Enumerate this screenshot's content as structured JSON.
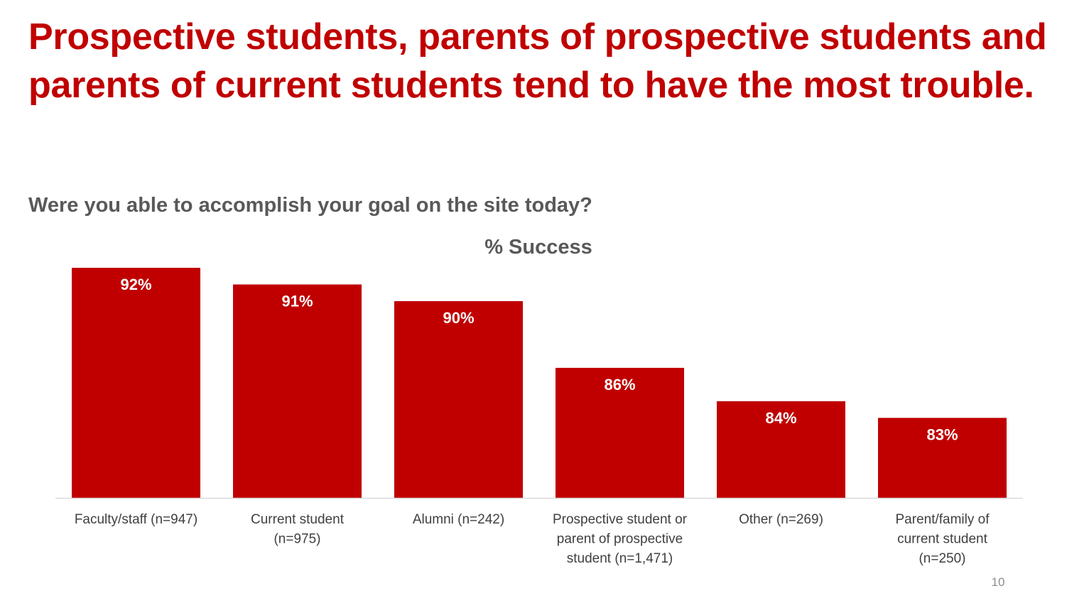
{
  "slide": {
    "headline": "Prospective students, parents of prospective students and parents of current students tend to have the most trouble.",
    "question": "Were you able to accomplish your goal on the site today?",
    "page_number": "10"
  },
  "colors": {
    "bar": "#c00000",
    "headline": "#c00000",
    "subtitle": "#595959",
    "axis_label": "#404040",
    "data_label": "#ffffff",
    "baseline": "#d9d9d9"
  },
  "chart_data": {
    "type": "bar",
    "title": "% Success",
    "categories": [
      "Faculty/staff (n=947)",
      "Current student (n=975)",
      "Alumni (n=242)",
      "Prospective student or parent of prospective student (n=1,471)",
      "Other (n=269)",
      "Parent/family of current student (n=250)"
    ],
    "category_lines": [
      [
        "Faculty/staff (n=947)"
      ],
      [
        "Current student",
        "(n=975)"
      ],
      [
        "Alumni (n=242)"
      ],
      [
        "Prospective student or",
        "parent of prospective",
        "student (n=1,471)"
      ],
      [
        "Other (n=269)"
      ],
      [
        "Parent/family of",
        "current student",
        "(n=250)"
      ]
    ],
    "series": [
      {
        "values": [
          92,
          91,
          90,
          86,
          84,
          83
        ]
      }
    ],
    "data_labels": [
      "92%",
      "91%",
      "90%",
      "86%",
      "84%",
      "83%"
    ],
    "ylim": [
      78.2,
      92
    ],
    "grid": false,
    "legend": "none"
  }
}
